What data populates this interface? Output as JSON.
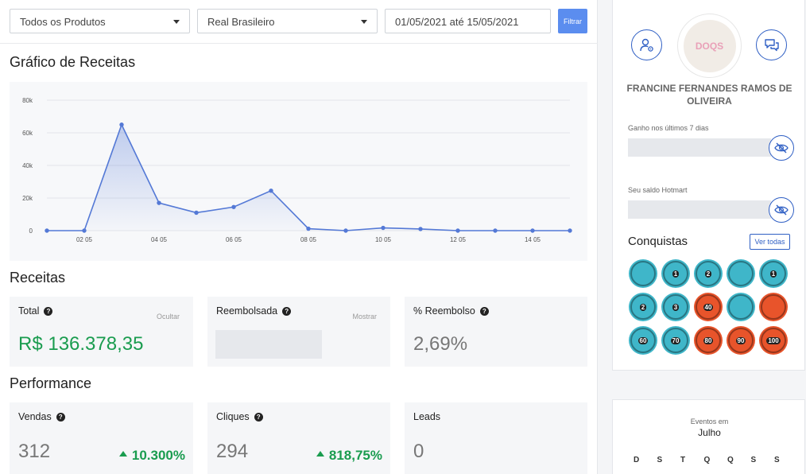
{
  "filters": {
    "product": "Todos os Produtos",
    "currency": "Real Brasileiro",
    "date_range": "01/05/2021 até 15/05/2021",
    "filter_button": "Filtrar"
  },
  "revenue_chart": {
    "title": "Gráfico de Receitas"
  },
  "chart_data": {
    "type": "area",
    "x": [
      "01 05",
      "02 05",
      "03 05",
      "04 05",
      "05 05",
      "06 05",
      "07 05",
      "08 05",
      "09 05",
      "10 05",
      "11 05",
      "12 05",
      "13 05",
      "14 05",
      "15 05"
    ],
    "x_tick_labels": [
      "02 05",
      "04 05",
      "06 05",
      "08 05",
      "10 05",
      "12 05",
      "14 05"
    ],
    "y_tick_labels": [
      "0",
      "20k",
      "40k",
      "60k",
      "80k"
    ],
    "ylim": [
      0,
      80000
    ],
    "series": [
      {
        "values": [
          0,
          0,
          65000,
          17000,
          11000,
          14500,
          24500,
          1200,
          0,
          1700,
          1000,
          0,
          0,
          0,
          0
        ]
      }
    ],
    "grid": true,
    "line_color": "#5479d6"
  },
  "receitas": {
    "title": "Receitas",
    "total": {
      "label": "Total",
      "toggle": "Ocultar",
      "value": "R$ 136.378,35"
    },
    "reembolsada": {
      "label": "Reembolsada",
      "toggle": "Mostrar"
    },
    "pct_reembolso": {
      "label": "% Reembolso",
      "value": "2,69%"
    }
  },
  "performance": {
    "title": "Performance",
    "vendas": {
      "label": "Vendas",
      "value": "312",
      "trend": "10.300%"
    },
    "cliques": {
      "label": "Cliques",
      "value": "294",
      "trend": "818,75%"
    },
    "leads": {
      "label": "Leads",
      "value": "0"
    }
  },
  "profile": {
    "avatar_text": "DOQS",
    "name": "FRANCINE FERNANDES RAMOS DE OLIVEIRA",
    "earned_label": "Ganho nos últimos 7 dias",
    "balance_label": "Seu saldo Hotmart",
    "achievements_title": "Conquistas",
    "see_all": "Ver todas",
    "badges": [
      {
        "color": "#3fb6c9",
        "text": ""
      },
      {
        "color": "#3fb6c9",
        "text": "1"
      },
      {
        "color": "#3fb6c9",
        "text": "2"
      },
      {
        "color": "#3fb6c9",
        "text": ""
      },
      {
        "color": "#3fb6c9",
        "text": "1"
      },
      {
        "color": "#3fb6c9",
        "text": "2"
      },
      {
        "color": "#3fb6c9",
        "text": "3"
      },
      {
        "color": "#e8542b",
        "text": "40"
      },
      {
        "color": "#3fb6c9",
        "text": ""
      },
      {
        "color": "#e8542b",
        "text": ""
      },
      {
        "color": "#3fb6c9",
        "text": "60"
      },
      {
        "color": "#3fb6c9",
        "text": "70"
      },
      {
        "color": "#e8542b",
        "text": "80"
      },
      {
        "color": "#e8542b",
        "text": "90"
      },
      {
        "color": "#e8542b",
        "text": "100"
      }
    ]
  },
  "calendar": {
    "subtitle": "Eventos em",
    "month": "Julho",
    "weekdays": [
      "D",
      "S",
      "T",
      "Q",
      "Q",
      "S",
      "S"
    ]
  }
}
